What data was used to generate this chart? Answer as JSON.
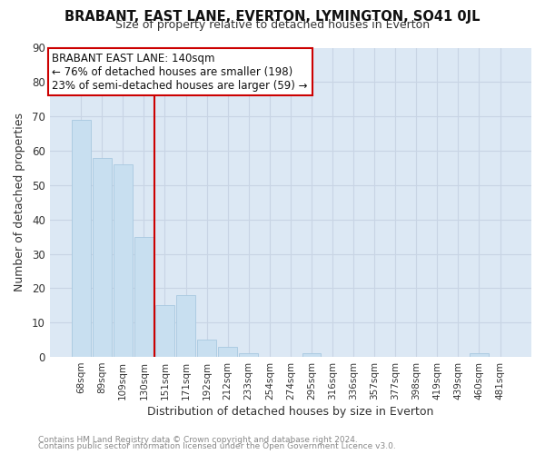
{
  "title": "BRABANT, EAST LANE, EVERTON, LYMINGTON, SO41 0JL",
  "subtitle": "Size of property relative to detached houses in Everton",
  "xlabel": "Distribution of detached houses by size in Everton",
  "ylabel": "Number of detached properties",
  "bar_labels": [
    "68sqm",
    "89sqm",
    "109sqm",
    "130sqm",
    "151sqm",
    "171sqm",
    "192sqm",
    "212sqm",
    "233sqm",
    "254sqm",
    "274sqm",
    "295sqm",
    "316sqm",
    "336sqm",
    "357sqm",
    "377sqm",
    "398sqm",
    "419sqm",
    "439sqm",
    "460sqm",
    "481sqm"
  ],
  "bar_values": [
    69,
    58,
    56,
    35,
    15,
    18,
    5,
    3,
    1,
    0,
    0,
    1,
    0,
    0,
    0,
    0,
    0,
    0,
    0,
    1,
    0
  ],
  "bar_color": "#c8dff0",
  "bar_edge_color": "#a8c8e0",
  "vline_x": 3.5,
  "vline_color": "#cc0000",
  "annotation_title": "BRABANT EAST LANE: 140sqm",
  "annotation_line1": "← 76% of detached houses are smaller (198)",
  "annotation_line2": "23% of semi-detached houses are larger (59) →",
  "annotation_box_color": "#ffffff",
  "annotation_box_edge": "#cc0000",
  "ylim": [
    0,
    90
  ],
  "yticks": [
    0,
    10,
    20,
    30,
    40,
    50,
    60,
    70,
    80,
    90
  ],
  "grid_color": "#c8d4e4",
  "plot_background": "#dce8f4",
  "figure_background": "#ffffff",
  "footer_line1": "Contains HM Land Registry data © Crown copyright and database right 2024.",
  "footer_line2": "Contains public sector information licensed under the Open Government Licence v3.0."
}
